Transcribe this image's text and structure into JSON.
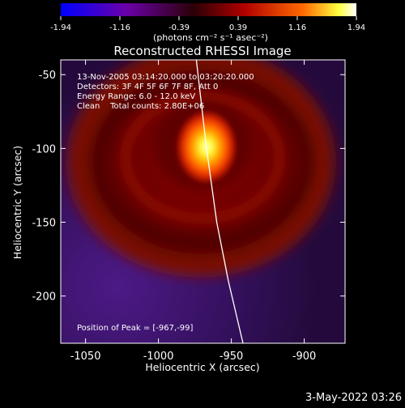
{
  "colorbar": {
    "tick_labels": [
      "-1.94",
      "-1.16",
      "-0.39",
      "0.39",
      "1.16",
      "1.94"
    ],
    "unit_label": "(photons cm⁻² s⁻¹ asec⁻²)",
    "colors": [
      "#0000ff",
      "#6a00a8",
      "#3a0000",
      "#b00000",
      "#ff6a00",
      "#ffff40",
      "#ffffff"
    ]
  },
  "title": "Reconstructed RHESSI Image",
  "info_lines": [
    "13-Nov-2005 03:14:20.000 to 03:20:20.000",
    "Detectors: 3F 4F 5F 6F 7F 8F, Att 0",
    "Energy Range: 6.0 - 12.0 keV",
    "Clean    Total counts: 2.80E+06"
  ],
  "peak_text": "Position of Peak = [-967,-99]",
  "xlabel": "Heliocentric X (arcsec)",
  "ylabel": "Heliocentric Y (arcsec)",
  "x_ticks": [
    "-1050",
    "-1000",
    "-950",
    "-900"
  ],
  "y_ticks": [
    "-50",
    "-100",
    "-150",
    "-200"
  ],
  "timestamp": "3-May-2022 03:26",
  "chart_data": {
    "type": "heatmap",
    "title": "Reconstructed RHESSI Image",
    "xlabel": "Heliocentric X (arcsec)",
    "ylabel": "Heliocentric Y (arcsec)",
    "xlim": [
      -1067,
      -872
    ],
    "ylim": [
      -232,
      -40
    ],
    "x_ticks": [
      -1050,
      -1000,
      -950,
      -900
    ],
    "y_ticks": [
      -50,
      -100,
      -150,
      -200
    ],
    "colorbar_range": [
      -1.94,
      1.94
    ],
    "peak_position": [
      -967,
      -99
    ],
    "limb_points": [
      [
        -974,
        -40
      ],
      [
        -967,
        -100
      ],
      [
        -960,
        -150
      ],
      [
        -952,
        -190
      ],
      [
        -942,
        -232
      ]
    ],
    "grid": false
  }
}
